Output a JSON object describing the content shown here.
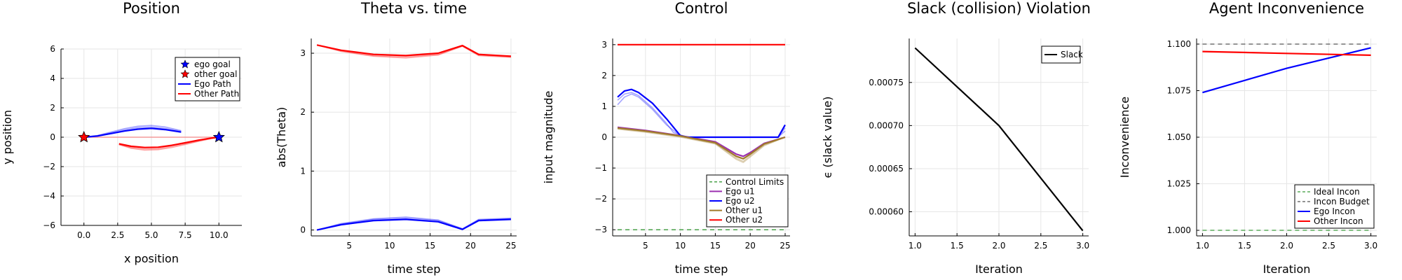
{
  "chart_data": [
    {
      "type": "line",
      "title": "Position",
      "xlabel": "x position",
      "ylabel": "y position",
      "xlim": [
        -1.7,
        11.7
      ],
      "ylim": [
        -6,
        6
      ],
      "xticks": [
        0,
        2.5,
        5,
        7.5,
        10
      ],
      "xtick_labels": [
        "0.0",
        "2.5",
        "5.0",
        "7.5",
        "10.0"
      ],
      "yticks": [
        -6,
        -4,
        -2,
        0,
        2,
        4,
        6
      ],
      "ytick_labels": [
        "−6",
        "−4",
        "−2",
        "0",
        "2",
        "4",
        "6"
      ],
      "grid": true,
      "legend_position": "top-right",
      "markers": [
        {
          "name": "ego goal",
          "x": 10,
          "y": 0,
          "color": "#0000ff"
        },
        {
          "name": "other goal",
          "x": 0,
          "y": 0,
          "color": "#ff0000"
        }
      ],
      "series": [
        {
          "name": "Ego Path",
          "color": "#0000ff",
          "x": [
            0,
            1,
            2,
            3,
            4,
            5,
            6,
            7.2
          ],
          "y": [
            0,
            0.08,
            0.25,
            0.42,
            0.55,
            0.6,
            0.52,
            0.35
          ]
        },
        {
          "name": "Other Path",
          "color": "#ff0000",
          "x": [
            2.6,
            3.5,
            4.5,
            5.5,
            6.5,
            7.5,
            8.5,
            9.5,
            10
          ],
          "y": [
            -0.45,
            -0.62,
            -0.7,
            -0.68,
            -0.55,
            -0.38,
            -0.2,
            -0.05,
            0
          ]
        }
      ],
      "faded_series": [
        {
          "color": "#0000ff",
          "x": [
            0,
            1,
            2,
            3,
            4,
            5,
            6,
            7.2
          ],
          "y": [
            0,
            0.12,
            0.35,
            0.58,
            0.75,
            0.8,
            0.7,
            0.45
          ]
        },
        {
          "color": "#0000ff",
          "x": [
            0,
            1,
            2,
            3,
            4,
            5,
            6,
            7.2
          ],
          "y": [
            0,
            0.1,
            0.3,
            0.5,
            0.65,
            0.7,
            0.6,
            0.4
          ]
        },
        {
          "color": "#ff0000",
          "x": [
            2.6,
            3.5,
            4.5,
            5.5,
            6.5,
            7.5,
            8.5,
            9.5,
            10
          ],
          "y": [
            -0.5,
            -0.75,
            -0.88,
            -0.85,
            -0.7,
            -0.5,
            -0.28,
            -0.08,
            0
          ]
        },
        {
          "color": "#ff0000",
          "x": [
            2.6,
            3.5,
            4.5,
            5.5,
            6.5,
            7.5,
            8.5,
            9.5,
            10
          ],
          "y": [
            -0.5,
            -0.7,
            -0.8,
            -0.78,
            -0.62,
            -0.45,
            -0.25,
            -0.07,
            0
          ]
        },
        {
          "color": "#ff0000",
          "x": [
            0,
            10
          ],
          "y": [
            0,
            0
          ]
        }
      ]
    },
    {
      "type": "line",
      "title": "Theta vs. time",
      "xlabel": "time step",
      "ylabel": "abs(Theta)",
      "xlim": [
        0.3,
        25.7
      ],
      "ylim": [
        -0.1,
        3.25
      ],
      "xticks": [
        5,
        10,
        15,
        20,
        25
      ],
      "xtick_labels": [
        "5",
        "10",
        "15",
        "20",
        "25"
      ],
      "yticks": [
        0,
        1,
        2,
        3
      ],
      "ytick_labels": [
        "0",
        "1",
        "2",
        "3"
      ],
      "grid": true,
      "series": [
        {
          "color": "#ff0000",
          "x": [
            1,
            4,
            8,
            12,
            16,
            19,
            21,
            25
          ],
          "y": [
            3.14,
            3.05,
            2.98,
            2.96,
            3.0,
            3.13,
            2.98,
            2.95
          ]
        },
        {
          "color": "#0000ff",
          "x": [
            1,
            4,
            8,
            12,
            16,
            19,
            21,
            25
          ],
          "y": [
            0,
            0.09,
            0.16,
            0.18,
            0.14,
            0.01,
            0.16,
            0.18
          ]
        }
      ],
      "faded_series": [
        {
          "color": "#ff0000",
          "x": [
            1,
            4,
            8,
            12,
            16,
            19,
            21,
            25
          ],
          "y": [
            3.14,
            3.03,
            2.95,
            2.92,
            2.97,
            3.12,
            2.96,
            2.93
          ]
        },
        {
          "color": "#ff0000",
          "x": [
            1,
            4,
            8,
            12,
            16,
            19,
            21,
            25
          ],
          "y": [
            3.14,
            3.04,
            2.96,
            2.94,
            2.98,
            3.12,
            2.97,
            2.94
          ]
        },
        {
          "color": "#0000ff",
          "x": [
            1,
            4,
            8,
            12,
            16,
            19,
            21,
            25
          ],
          "y": [
            0,
            0.11,
            0.19,
            0.22,
            0.17,
            0.02,
            0.18,
            0.2
          ]
        },
        {
          "color": "#0000ff",
          "x": [
            1,
            4,
            8,
            12,
            16,
            19,
            21,
            25
          ],
          "y": [
            0,
            0.1,
            0.18,
            0.2,
            0.16,
            0.02,
            0.17,
            0.19
          ]
        }
      ]
    },
    {
      "type": "line",
      "title": "Control",
      "xlabel": "time step",
      "ylabel": "input magnitude",
      "xlim": [
        0.3,
        25.7
      ],
      "ylim": [
        -3.2,
        3.2
      ],
      "xticks": [
        5,
        10,
        15,
        20,
        25
      ],
      "xtick_labels": [
        "5",
        "10",
        "15",
        "20",
        "25"
      ],
      "yticks": [
        -3,
        -2,
        -1,
        0,
        1,
        2,
        3
      ],
      "ytick_labels": [
        "−3",
        "−2",
        "−1",
        "0",
        "1",
        "2",
        "3"
      ],
      "grid": true,
      "legend_position": "bottom-right",
      "series": [
        {
          "name": "Control Limits",
          "color": "#3a9a3a",
          "dashed": true,
          "x": [
            1,
            25
          ],
          "y": [
            -3,
            -3
          ]
        },
        {
          "name": "Ego u1",
          "color": "#9b30b0",
          "x": [
            1,
            5,
            10,
            15,
            18,
            19,
            20,
            22,
            25
          ],
          "y": [
            0.32,
            0.22,
            0.05,
            -0.15,
            -0.55,
            -0.62,
            -0.5,
            -0.2,
            0
          ]
        },
        {
          "name": "Ego u2",
          "color": "#0000ff",
          "x": [
            1,
            2,
            3,
            4,
            6,
            8,
            10,
            11,
            15,
            20,
            24,
            25
          ],
          "y": [
            1.3,
            1.5,
            1.55,
            1.45,
            1.1,
            0.6,
            0.05,
            0,
            0,
            0,
            0,
            0.4
          ]
        },
        {
          "name": "Other u1",
          "color": "#a07a2a",
          "x": [
            1,
            5,
            10,
            15,
            18,
            19,
            20,
            22,
            25
          ],
          "y": [
            0.3,
            0.2,
            0.04,
            -0.18,
            -0.62,
            -0.7,
            -0.55,
            -0.22,
            0
          ]
        },
        {
          "name": "Other u2",
          "color": "#ff0000",
          "x": [
            1,
            25
          ],
          "y": [
            3,
            3
          ]
        }
      ],
      "extra_series": [
        {
          "color": "#3a9a3a",
          "dashed": true,
          "x": [
            1,
            25
          ],
          "y": [
            3,
            3
          ]
        }
      ],
      "faded_series": [
        {
          "color": "#0000ff",
          "x": [
            1,
            2,
            3,
            4,
            6,
            8,
            9,
            11,
            15,
            20,
            24,
            25
          ],
          "y": [
            1.2,
            1.4,
            1.45,
            1.35,
            0.95,
            0.45,
            0.15,
            0,
            0,
            0,
            0,
            0.3
          ]
        },
        {
          "color": "#0000ff",
          "x": [
            1,
            2,
            3,
            4,
            6,
            8,
            10,
            11,
            15,
            20,
            24,
            25
          ],
          "y": [
            1.05,
            1.3,
            1.4,
            1.3,
            0.9,
            0.4,
            0.05,
            0,
            0,
            0,
            0,
            0.2
          ]
        },
        {
          "color": "#a07a2a",
          "x": [
            1,
            5,
            10,
            15,
            18,
            19,
            20,
            22,
            25
          ],
          "y": [
            0.28,
            0.18,
            0.02,
            -0.2,
            -0.68,
            -0.78,
            -0.6,
            -0.25,
            0
          ]
        },
        {
          "color": "#a07a2a",
          "x": [
            1,
            5,
            10,
            15,
            18,
            19,
            20,
            22,
            25
          ],
          "y": [
            0.26,
            0.16,
            0,
            -0.22,
            -0.72,
            -0.82,
            -0.64,
            -0.28,
            0
          ]
        }
      ]
    },
    {
      "type": "line",
      "title": "Slack (collision) Violation",
      "xlabel": "Iteration",
      "ylabel": "ϵ (slack value)",
      "xlim": [
        0.93,
        3.07
      ],
      "ylim": [
        0.000572,
        0.000801
      ],
      "xticks": [
        1.0,
        1.5,
        2.0,
        2.5,
        3.0
      ],
      "xtick_labels": [
        "1.0",
        "1.5",
        "2.0",
        "2.5",
        "3.0"
      ],
      "yticks": [
        0.0006,
        0.00065,
        0.0007,
        0.00075
      ],
      "ytick_labels": [
        "0.00060",
        "0.00065",
        "0.00070",
        "0.00075"
      ],
      "grid": true,
      "legend_position": "top-right",
      "series": [
        {
          "name": "Slack",
          "color": "#000000",
          "x": [
            1,
            2,
            3
          ],
          "y": [
            0.00079,
            0.0007,
            0.000578
          ]
        }
      ]
    },
    {
      "type": "line",
      "title": "Agent Inconvenience",
      "xlabel": "Iteration",
      "ylabel": "Inconvenience",
      "xlim": [
        0.93,
        3.07
      ],
      "ylim": [
        0.997,
        1.103
      ],
      "xticks": [
        1.0,
        1.5,
        2.0,
        2.5,
        3.0
      ],
      "xtick_labels": [
        "1.0",
        "1.5",
        "2.0",
        "2.5",
        "3.0"
      ],
      "yticks": [
        1.0,
        1.025,
        1.05,
        1.075,
        1.1
      ],
      "ytick_labels": [
        "1.000",
        "1.025",
        "1.050",
        "1.075",
        "1.100"
      ],
      "grid": true,
      "legend_position": "bottom-right",
      "series": [
        {
          "name": "Ideal Incon",
          "color": "#3a9a3a",
          "dashed": true,
          "x": [
            1,
            3
          ],
          "y": [
            1.0,
            1.0
          ]
        },
        {
          "name": "Incon Budget",
          "color": "#555555",
          "dashed": true,
          "x": [
            1,
            3
          ],
          "y": [
            1.1,
            1.1
          ]
        },
        {
          "name": "Ego Incon",
          "color": "#0000ff",
          "x": [
            1,
            2,
            3
          ],
          "y": [
            1.074,
            1.087,
            1.098
          ]
        },
        {
          "name": "Other Incon",
          "color": "#ff0000",
          "x": [
            1,
            2,
            3
          ],
          "y": [
            1.096,
            1.095,
            1.094
          ]
        }
      ]
    }
  ]
}
